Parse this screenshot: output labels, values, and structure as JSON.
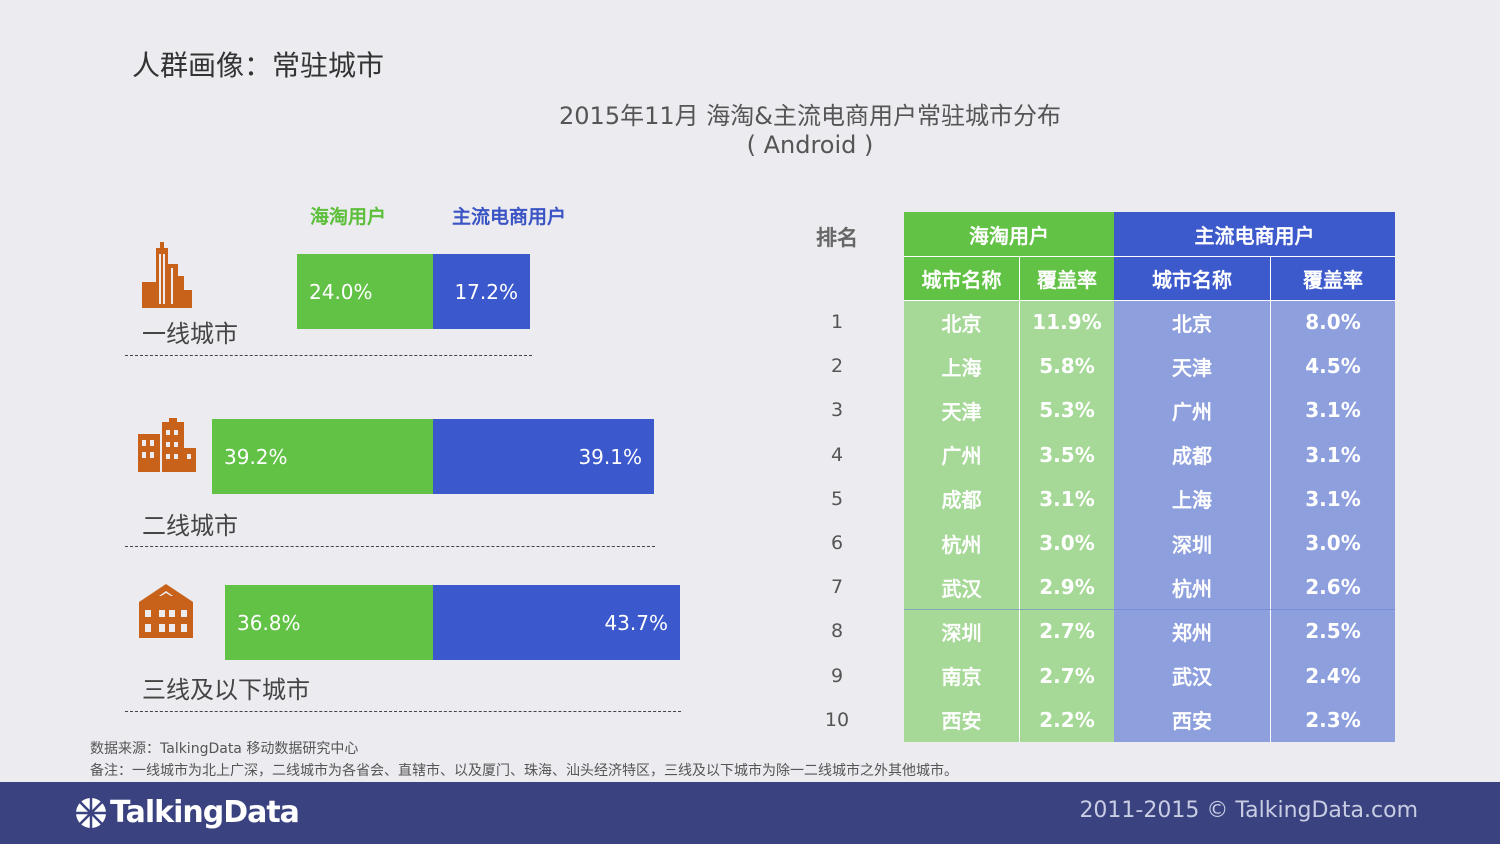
{
  "page_title": "人群画像：常驻城市",
  "chart_title": "2015年11月 海淘&主流电商用户常驻城市分布",
  "chart_subtitle": "( Android )",
  "legend": {
    "haitao": "海淘用户",
    "main": "主流电商用户"
  },
  "colors": {
    "haitao": "#62c246",
    "main": "#3b58cc",
    "icon": "#c8621b",
    "footer": "#3a4380"
  },
  "icons": [
    "skyscraper-icon",
    "office-building-icon",
    "house-icon"
  ],
  "chart_data": {
    "type": "bar",
    "stacked": true,
    "categories": [
      "一线城市",
      "二线城市",
      "三线及以下城市"
    ],
    "series": [
      {
        "name": "海淘用户",
        "values": [
          24.0,
          39.2,
          36.8
        ],
        "labels": [
          "24.0%",
          "39.2%",
          "36.8%"
        ]
      },
      {
        "name": "主流电商用户",
        "values": [
          17.2,
          39.1,
          43.7
        ],
        "labels": [
          "17.2%",
          "39.1%",
          "43.7%"
        ]
      }
    ],
    "unit": "%"
  },
  "table": {
    "rank_header": "排名",
    "group_headers": [
      "海淘用户",
      "主流电商用户"
    ],
    "sub_headers": [
      "城市名称",
      "覆盖率",
      "城市名称",
      "覆盖率"
    ],
    "rows": [
      {
        "rank": "1",
        "g_city": "北京",
        "g_rate": "11.9%",
        "b_city": "北京",
        "b_rate": "8.0%"
      },
      {
        "rank": "2",
        "g_city": "上海",
        "g_rate": "5.8%",
        "b_city": "天津",
        "b_rate": "4.5%"
      },
      {
        "rank": "3",
        "g_city": "天津",
        "g_rate": "5.3%",
        "b_city": "广州",
        "b_rate": "3.1%"
      },
      {
        "rank": "4",
        "g_city": "广州",
        "g_rate": "3.5%",
        "b_city": "成都",
        "b_rate": "3.1%"
      },
      {
        "rank": "5",
        "g_city": "成都",
        "g_rate": "3.1%",
        "b_city": "上海",
        "b_rate": "3.1%"
      },
      {
        "rank": "6",
        "g_city": "杭州",
        "g_rate": "3.0%",
        "b_city": "深圳",
        "b_rate": "3.0%"
      },
      {
        "rank": "7",
        "g_city": "武汉",
        "g_rate": "2.9%",
        "b_city": "杭州",
        "b_rate": "2.6%"
      },
      {
        "rank": "8",
        "g_city": "深圳",
        "g_rate": "2.7%",
        "b_city": "郑州",
        "b_rate": "2.5%"
      },
      {
        "rank": "9",
        "g_city": "南京",
        "g_rate": "2.7%",
        "b_city": "武汉",
        "b_rate": "2.4%"
      },
      {
        "rank": "10",
        "g_city": "西安",
        "g_rate": "2.2%",
        "b_city": "西安",
        "b_rate": "2.3%"
      }
    ]
  },
  "source": "数据来源：TalkingData 移动数据研究中心",
  "note": "备注：一线城市为北上广深，二线城市为各省会、直辖市、以及厦门、珠海、汕头经济特区，三线及以下城市为除一二线城市之外其他城市。",
  "footer": {
    "logo": "TalkingData",
    "copyright": "2011-2015 © TalkingData.com"
  }
}
